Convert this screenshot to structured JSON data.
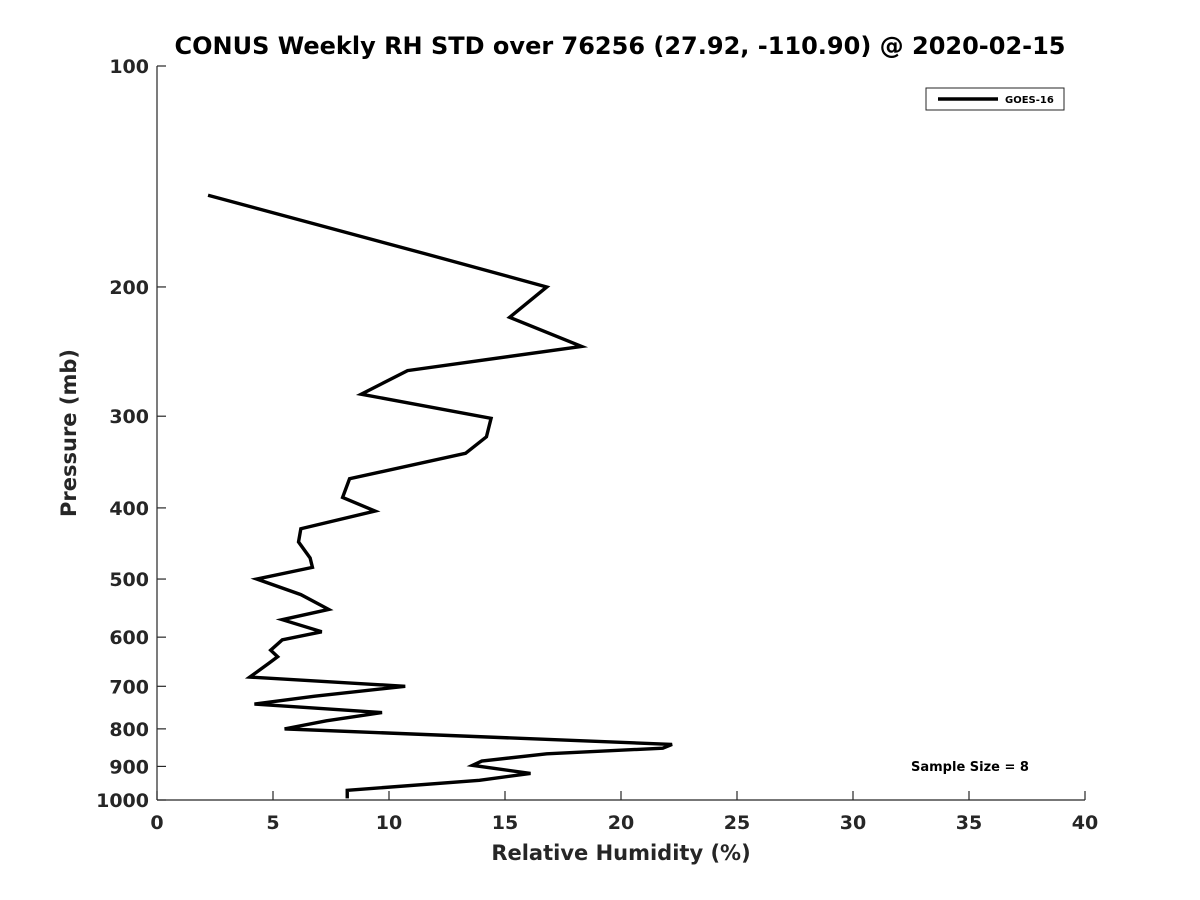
{
  "chart_data": {
    "type": "line",
    "title": "CONUS Weekly RH STD over 76256 (27.92, -110.90) @ 2020-02-15",
    "xlabel": "Relative Humidity (%)",
    "ylabel": "Pressure (mb)",
    "xlim": [
      0,
      40
    ],
    "ylim": [
      100,
      1000
    ],
    "yscale": "log",
    "yreversed": true,
    "x_ticks": [
      "0",
      "5",
      "10",
      "15",
      "20",
      "25",
      "30",
      "35",
      "40"
    ],
    "y_ticks": [
      "100",
      "200",
      "300",
      "400",
      "500",
      "600",
      "700",
      "800",
      "900",
      "1000"
    ],
    "grid": false,
    "legend_position": "top-right",
    "legend": [
      "GOES-16"
    ],
    "annotation": "Sample Size = 8",
    "series": [
      {
        "name": "GOES-16",
        "color": "#000000",
        "points": [
          [
            2.2,
            150
          ],
          [
            11.5,
            180
          ],
          [
            16.8,
            200
          ],
          [
            15.2,
            220
          ],
          [
            18.3,
            241
          ],
          [
            10.8,
            260
          ],
          [
            8.8,
            280
          ],
          [
            14.4,
            302
          ],
          [
            14.2,
            320
          ],
          [
            13.3,
            337
          ],
          [
            8.3,
            365
          ],
          [
            8.0,
            387
          ],
          [
            9.4,
            404
          ],
          [
            6.2,
            427
          ],
          [
            6.1,
            445
          ],
          [
            6.6,
            468
          ],
          [
            6.7,
            482
          ],
          [
            4.3,
            500
          ],
          [
            6.2,
            525
          ],
          [
            7.4,
            550
          ],
          [
            5.4,
            568
          ],
          [
            7.1,
            590
          ],
          [
            5.4,
            605
          ],
          [
            4.9,
            625
          ],
          [
            5.2,
            638
          ],
          [
            4.8,
            652
          ],
          [
            4.4,
            666
          ],
          [
            4.0,
            680
          ],
          [
            10.7,
            700
          ],
          [
            6.8,
            722
          ],
          [
            4.2,
            740
          ],
          [
            9.7,
            760
          ],
          [
            7.3,
            780
          ],
          [
            5.5,
            800
          ],
          [
            22.2,
            840
          ],
          [
            21.8,
            850
          ],
          [
            16.8,
            865
          ],
          [
            14.0,
            885
          ],
          [
            13.6,
            897
          ],
          [
            16.1,
            920
          ],
          [
            13.9,
            940
          ],
          [
            8.2,
            970
          ],
          [
            8.2,
            995
          ]
        ]
      }
    ]
  }
}
